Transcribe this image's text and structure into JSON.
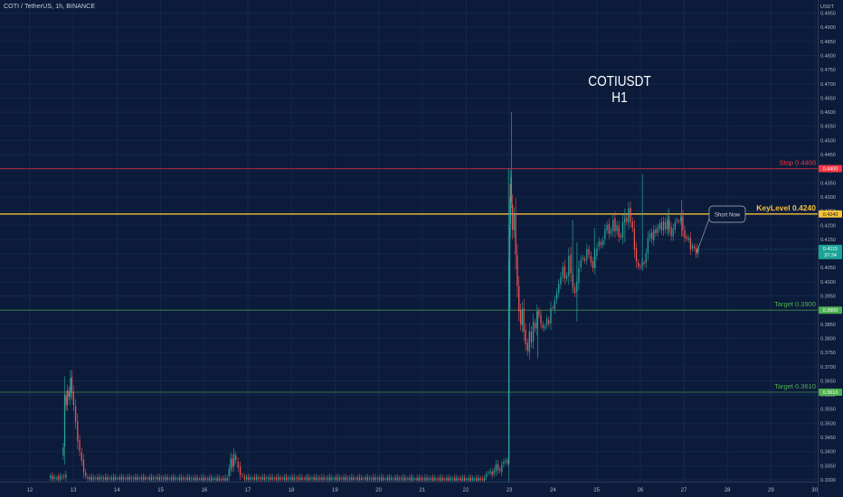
{
  "header": {
    "symbol": "COTI / TetherUS, 1h, BINANCE",
    "axis_unit": "USDT"
  },
  "chart_data": {
    "type": "candlestick",
    "title_lines": [
      "COTIUSDT",
      "H1"
    ],
    "ylim": [
      0.33,
      0.5
    ],
    "y_ticks": [
      0.495,
      0.49,
      0.485,
      0.48,
      0.475,
      0.47,
      0.465,
      0.46,
      0.455,
      0.45,
      0.445,
      0.435,
      0.43,
      0.425,
      0.42,
      0.415,
      0.41,
      0.405,
      0.4,
      0.395,
      0.385,
      0.38,
      0.375,
      0.37,
      0.365,
      0.36,
      0.355,
      0.35,
      0.345,
      0.34,
      0.335,
      0.33
    ],
    "x_ticks": [
      "12",
      "13",
      "14",
      "15",
      "16",
      "17",
      "18",
      "19",
      "20",
      "21",
      "22",
      "23",
      "24",
      "25",
      "26",
      "27",
      "28",
      "29",
      "30"
    ],
    "colors": {
      "up": "#26a69a",
      "down": "#ef5350",
      "stop": "#f23645",
      "key": "#f7c23a",
      "target": "#4caf50",
      "last": "#1aa394"
    },
    "last_price": "0.4115",
    "last_countdown": "37:34",
    "levels": [
      {
        "id": "stop",
        "price": 0.44,
        "axis_label": "0.4400",
        "text": "Stop 0.4400"
      },
      {
        "id": "key",
        "price": 0.424,
        "axis_label": "0.4240",
        "text": "KeyLevel 0.4240"
      },
      {
        "id": "target1",
        "price": 0.39,
        "axis_label": "0.3900",
        "text": "Target 0.3900"
      },
      {
        "id": "target2",
        "price": 0.361,
        "axis_label": "0.3610",
        "text": "Target 0.3610"
      }
    ],
    "annotation": {
      "text": "Short Now"
    },
    "candle_segments": [
      {
        "from_day": 12.45,
        "to_day": 12.85,
        "o": 0.331,
        "path": [
          0.3305,
          0.3315
        ]
      },
      {
        "from_day": 12.75,
        "to_day": 12.98,
        "o": 0.338,
        "path": [
          0.342,
          0.36,
          0.356,
          0.362,
          0.359,
          0.366,
          0.361
        ]
      },
      {
        "from_day": 12.98,
        "to_day": 13.35,
        "o": 0.361,
        "path": [
          0.356,
          0.348,
          0.342,
          0.338,
          0.334,
          0.331,
          0.3305
        ]
      },
      {
        "from_day": 13.35,
        "to_day": 16.55,
        "o": 0.3305,
        "path": [
          0.3305,
          0.3302
        ]
      },
      {
        "from_day": 16.55,
        "to_day": 16.7,
        "o": 0.331,
        "path": [
          0.334,
          0.337,
          0.335,
          0.339
        ]
      },
      {
        "from_day": 16.7,
        "to_day": 16.95,
        "o": 0.339,
        "path": [
          0.336,
          0.333,
          0.331,
          0.3305
        ]
      },
      {
        "from_day": 16.95,
        "to_day": 22.45,
        "o": 0.3305,
        "path": [
          0.3304,
          0.3302
        ]
      },
      {
        "from_day": 22.45,
        "to_day": 22.98,
        "o": 0.331,
        "path": [
          0.333,
          0.332,
          0.335,
          0.333,
          0.337,
          0.336
        ]
      },
      {
        "from_day": 22.98,
        "to_day": 23.05,
        "o": 0.336,
        "path": [
          0.39,
          0.42,
          0.435,
          0.428
        ]
      },
      {
        "from_day": 23.05,
        "to_day": 23.35,
        "o": 0.428,
        "path": [
          0.418,
          0.424,
          0.41,
          0.398,
          0.39,
          0.385,
          0.39,
          0.383
        ]
      },
      {
        "from_day": 23.35,
        "to_day": 23.7,
        "o": 0.383,
        "path": [
          0.378,
          0.376,
          0.382,
          0.379,
          0.386,
          0.383,
          0.39,
          0.388
        ]
      },
      {
        "from_day": 23.7,
        "to_day": 24.2,
        "o": 0.388,
        "path": [
          0.385,
          0.382,
          0.388,
          0.384,
          0.392,
          0.39,
          0.396,
          0.398,
          0.402
        ]
      },
      {
        "from_day": 24.2,
        "to_day": 24.8,
        "o": 0.402,
        "path": [
          0.406,
          0.398,
          0.41,
          0.402,
          0.395,
          0.399,
          0.405,
          0.41,
          0.406,
          0.412
        ]
      },
      {
        "from_day": 24.8,
        "to_day": 25.4,
        "o": 0.412,
        "path": [
          0.408,
          0.405,
          0.41,
          0.415,
          0.412,
          0.418,
          0.42,
          0.416,
          0.422
        ]
      },
      {
        "from_day": 25.4,
        "to_day": 25.8,
        "o": 0.422,
        "path": [
          0.418,
          0.42,
          0.414,
          0.418,
          0.424,
          0.42,
          0.426,
          0.422
        ]
      },
      {
        "from_day": 25.8,
        "to_day": 26.2,
        "o": 0.422,
        "path": [
          0.418,
          0.41,
          0.406,
          0.404,
          0.408,
          0.405,
          0.41,
          0.415
        ]
      },
      {
        "from_day": 26.2,
        "to_day": 26.6,
        "o": 0.415,
        "path": [
          0.418,
          0.414,
          0.42,
          0.416,
          0.422,
          0.418,
          0.421,
          0.419
        ]
      },
      {
        "from_day": 26.6,
        "to_day": 27.0,
        "o": 0.419,
        "path": [
          0.422,
          0.418,
          0.416,
          0.42,
          0.423,
          0.42,
          0.424,
          0.418
        ]
      },
      {
        "from_day": 27.0,
        "to_day": 27.35,
        "o": 0.418,
        "path": [
          0.415,
          0.416,
          0.412,
          0.413,
          0.41,
          0.4115
        ]
      }
    ],
    "spikes": [
      {
        "day": 23.05,
        "high": 0.46,
        "low": 0.428
      },
      {
        "day": 22.98,
        "high": 0.44,
        "low": 0.336
      },
      {
        "day": 23.65,
        "high": 0.39,
        "low": 0.373
      },
      {
        "day": 24.45,
        "high": 0.422,
        "low": 0.396
      },
      {
        "day": 24.55,
        "high": 0.414,
        "low": 0.386
      },
      {
        "day": 24.95,
        "high": 0.419,
        "low": 0.405
      },
      {
        "day": 25.65,
        "high": 0.426,
        "low": 0.414
      },
      {
        "day": 26.05,
        "high": 0.438,
        "low": 0.404
      },
      {
        "day": 26.65,
        "high": 0.426,
        "low": 0.416
      },
      {
        "day": 26.95,
        "high": 0.429,
        "low": 0.416
      }
    ]
  }
}
